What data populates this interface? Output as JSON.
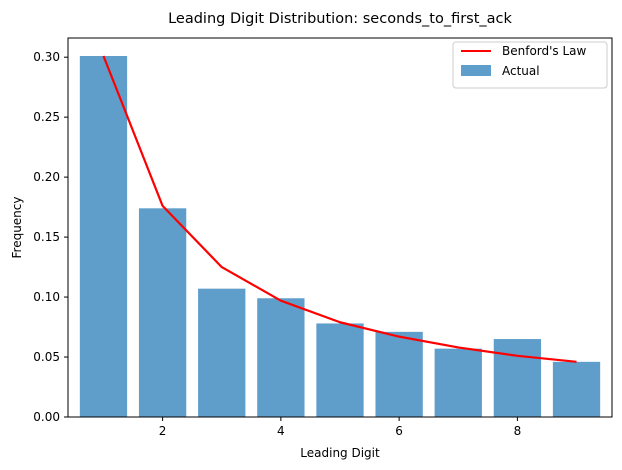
{
  "chart_data": {
    "type": "bar",
    "title": "Leading Digit Distribution: seconds_to_first_ack",
    "xlabel": "Leading Digit",
    "ylabel": "Frequency",
    "xlim": [
      0.4,
      9.6
    ],
    "ylim": [
      0,
      0.316
    ],
    "xticks": [
      2,
      4,
      6,
      8
    ],
    "xtick_labels": [
      "2",
      "4",
      "6",
      "8"
    ],
    "yticks": [
      0.0,
      0.05,
      0.1,
      0.15,
      0.2,
      0.25,
      0.3
    ],
    "ytick_labels": [
      "0.00",
      "0.05",
      "0.10",
      "0.15",
      "0.20",
      "0.25",
      "0.30"
    ],
    "legend_position": "top-right",
    "series": [
      {
        "name": "Benford's Law",
        "kind": "line",
        "color": "#ff0000",
        "x": [
          1,
          2,
          3,
          4,
          5,
          6,
          7,
          8,
          9
        ],
        "values": [
          0.301,
          0.176,
          0.125,
          0.097,
          0.079,
          0.067,
          0.058,
          0.051,
          0.046
        ]
      },
      {
        "name": "Actual",
        "kind": "bar",
        "color": "#5f9ecb",
        "x": [
          1,
          2,
          3,
          4,
          5,
          6,
          7,
          8,
          9
        ],
        "values": [
          0.301,
          0.174,
          0.107,
          0.099,
          0.078,
          0.071,
          0.057,
          0.065,
          0.046
        ]
      }
    ]
  }
}
